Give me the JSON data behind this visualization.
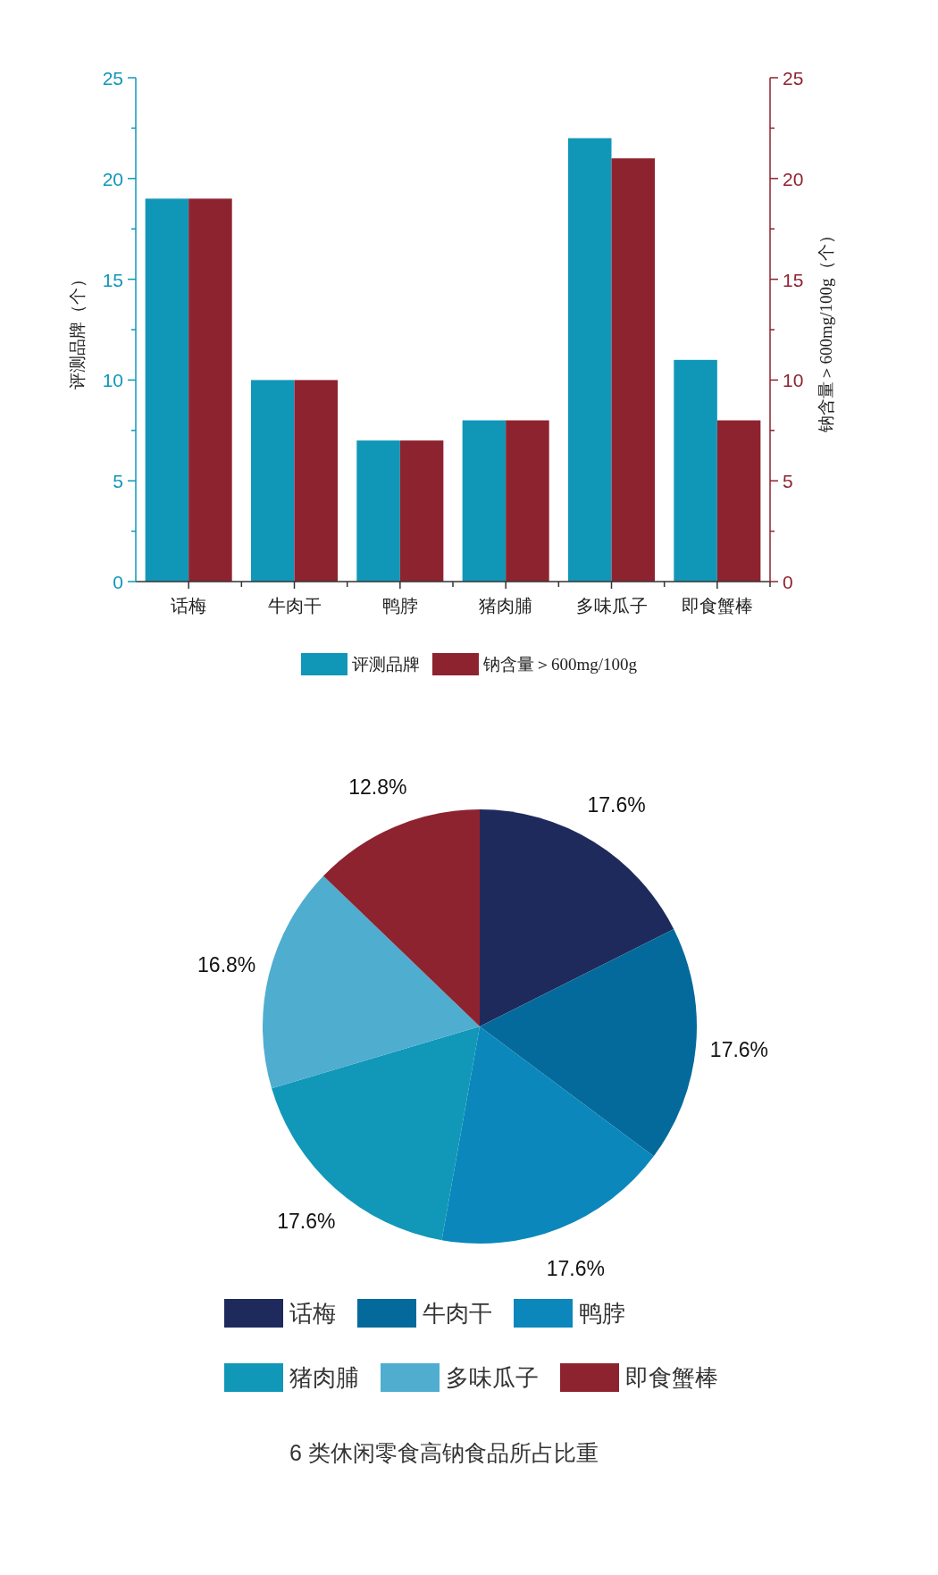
{
  "chart_data": [
    {
      "type": "bar",
      "categories": [
        "话梅",
        "牛肉干",
        "鸭脖",
        "猪肉脯",
        "多味瓜子",
        "即食蟹棒"
      ],
      "series": [
        {
          "name": "评测品牌",
          "color": "#1097b8",
          "values": [
            19,
            10,
            7,
            8,
            22,
            11
          ]
        },
        {
          "name": "钠含量＞600mg/100g",
          "color": "#8e2330",
          "values": [
            19,
            10,
            7,
            8,
            21,
            8
          ],
          "axis": "y2"
        }
      ],
      "ylabel": "评测品牌（个）",
      "y2label": "钠含量＞600mg/100g（个）",
      "ylim": [
        0,
        25
      ],
      "yticks": [
        0,
        5,
        10,
        15,
        20,
        25
      ],
      "y2lim": [
        0,
        25
      ],
      "y2ticks": [
        0,
        5,
        10,
        15,
        20,
        25
      ],
      "grid": false,
      "legend": "bottom"
    },
    {
      "type": "pie",
      "title": "6 类休闲零食高钠食品所占比重",
      "categories": [
        "话梅",
        "牛肉干",
        "鸭脖",
        "猪肉脯",
        "多味瓜子",
        "即食蟹棒"
      ],
      "values": [
        17.6,
        17.6,
        17.6,
        17.6,
        16.8,
        12.8
      ],
      "colors": [
        "#1f2a5c",
        "#046a9b",
        "#0b87bb",
        "#1198b8",
        "#4fadd0",
        "#8e2330"
      ],
      "value_labels": [
        "17.6%",
        "17.6%",
        "17.6%",
        "17.6%",
        "16.8%",
        "12.8%"
      ],
      "legend": "bottom"
    }
  ]
}
